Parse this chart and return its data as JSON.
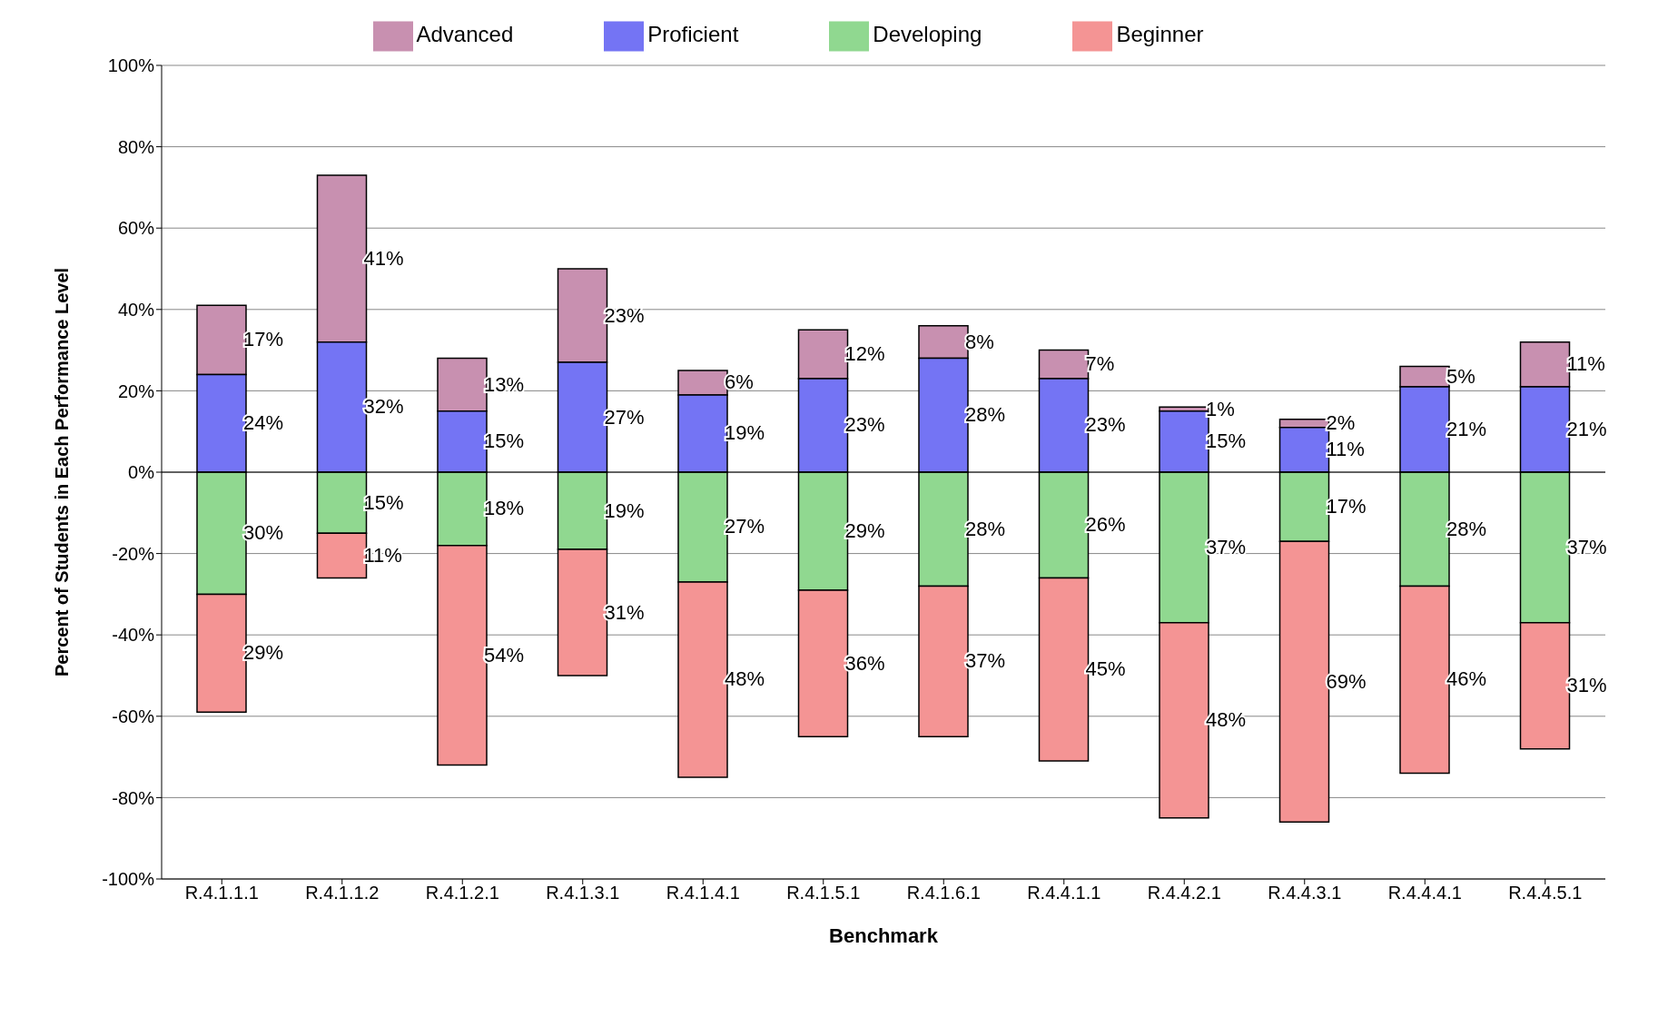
{
  "chart_data": {
    "type": "bar",
    "xlabel": "Benchmark",
    "ylabel": "Percent of Students in Each Performance Level",
    "categories": [
      "R.4.1.1.1",
      "R.4.1.1.2",
      "R.4.1.2.1",
      "R.4.1.3.1",
      "R.4.1.4.1",
      "R.4.1.5.1",
      "R.4.1.6.1",
      "R.4.4.1.1",
      "R.4.4.2.1",
      "R.4.4.3.1",
      "R.4.4.4.1",
      "R.4.4.5.1"
    ],
    "series": [
      {
        "name": "Advanced",
        "color": "#c890b0",
        "values": [
          17,
          41,
          13,
          23,
          6,
          12,
          8,
          7,
          1,
          2,
          5,
          11
        ],
        "base": [
          24,
          32,
          15,
          27,
          19,
          23,
          28,
          23,
          15,
          11,
          21,
          21
        ],
        "value_labels": [
          "17%",
          "41%",
          "13%",
          "23%",
          "6%",
          "12%",
          "8%",
          "7%",
          "1%",
          "2%",
          "5%",
          "11%"
        ]
      },
      {
        "name": "Proficient",
        "color": "#7474f4",
        "values": [
          24,
          32,
          15,
          27,
          19,
          23,
          28,
          23,
          15,
          11,
          21,
          21
        ],
        "base": [
          0,
          0,
          0,
          0,
          0,
          0,
          0,
          0,
          0,
          0,
          0,
          0
        ],
        "value_labels": [
          "24%",
          "32%",
          "15%",
          "27%",
          "19%",
          "23%",
          "28%",
          "23%",
          "15%",
          "11%",
          "21%",
          "21%"
        ]
      },
      {
        "name": "Developing",
        "color": "#90d890",
        "values": [
          30,
          15,
          18,
          19,
          27,
          29,
          28,
          26,
          37,
          17,
          28,
          37
        ],
        "base": [
          -30,
          -15,
          -18,
          -19,
          -27,
          -29,
          -28,
          -26,
          -37,
          -17,
          -28,
          -37
        ],
        "value_labels": [
          "30%",
          "15%",
          "18%",
          "19%",
          "27%",
          "29%",
          "28%",
          "26%",
          "37%",
          "17%",
          "28%",
          "37%"
        ]
      },
      {
        "name": "Beginner",
        "color": "#f49494",
        "values": [
          29,
          11,
          54,
          31,
          48,
          36,
          37,
          45,
          48,
          69,
          46,
          31
        ],
        "base": [
          -59,
          -26,
          -72,
          -50,
          -75,
          -65,
          -65,
          -71,
          -85,
          -86,
          -74,
          -68
        ],
        "value_labels": [
          "29%",
          "11%",
          "54%",
          "31%",
          "48%",
          "36%",
          "37%",
          "45%",
          "48%",
          "69%",
          "46%",
          "31%"
        ]
      }
    ],
    "ylim": [
      -100,
      100
    ],
    "yticks": [
      {
        "value": -100,
        "label": "-100%"
      },
      {
        "value": -80,
        "label": "-80%"
      },
      {
        "value": -60,
        "label": "-60%"
      },
      {
        "value": -40,
        "label": "-40%"
      },
      {
        "value": -20,
        "label": "-20%"
      },
      {
        "value": 0,
        "label": "0%"
      },
      {
        "value": 20,
        "label": "20%"
      },
      {
        "value": 40,
        "label": "40%"
      },
      {
        "value": 60,
        "label": "60%"
      },
      {
        "value": 80,
        "label": "80%"
      },
      {
        "value": 100,
        "label": "100%"
      }
    ],
    "grid": "y",
    "legend": "top"
  }
}
